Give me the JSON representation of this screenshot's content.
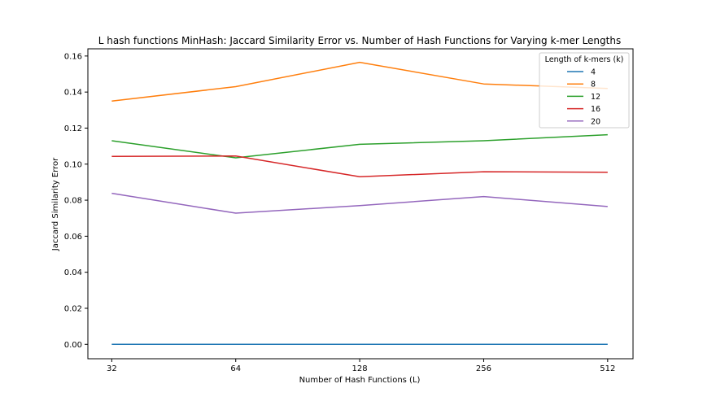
{
  "chart_data": {
    "type": "line",
    "title": "L hash functions MinHash: Jaccard Similarity Error vs. Number of Hash Functions for Varying k-mer Lengths",
    "xlabel": "Number of Hash Functions (L)",
    "ylabel": "Jaccard Similarity Error",
    "x_scale": "log2",
    "categories": [
      "32",
      "64",
      "128",
      "256",
      "512"
    ],
    "x": [
      32,
      64,
      128,
      256,
      512
    ],
    "xlim": [
      28,
      590
    ],
    "ylim": [
      -0.008,
      0.164
    ],
    "yticks": [
      0.0,
      0.02,
      0.04,
      0.06,
      0.08,
      0.1,
      0.12,
      0.14,
      0.16
    ],
    "ytick_labels": [
      "0.00",
      "0.02",
      "0.04",
      "0.06",
      "0.08",
      "0.10",
      "0.12",
      "0.14",
      "0.16"
    ],
    "grid": false,
    "legend": {
      "title": "Length of k-mers (k)",
      "position": "top-right"
    },
    "series": [
      {
        "name": "4",
        "color": "#1f77b4",
        "values": [
          0.0,
          0.0,
          0.0,
          0.0,
          0.0
        ]
      },
      {
        "name": "8",
        "color": "#ff7f0e",
        "values": [
          0.135,
          0.143,
          0.1565,
          0.1445,
          0.142
        ]
      },
      {
        "name": "12",
        "color": "#2ca02c",
        "values": [
          0.113,
          0.1035,
          0.111,
          0.113,
          0.1163
        ]
      },
      {
        "name": "16",
        "color": "#d62728",
        "values": [
          0.1043,
          0.1045,
          0.093,
          0.0958,
          0.0955
        ]
      },
      {
        "name": "20",
        "color": "#9467bd",
        "values": [
          0.0838,
          0.0728,
          0.077,
          0.082,
          0.0765
        ]
      }
    ]
  }
}
